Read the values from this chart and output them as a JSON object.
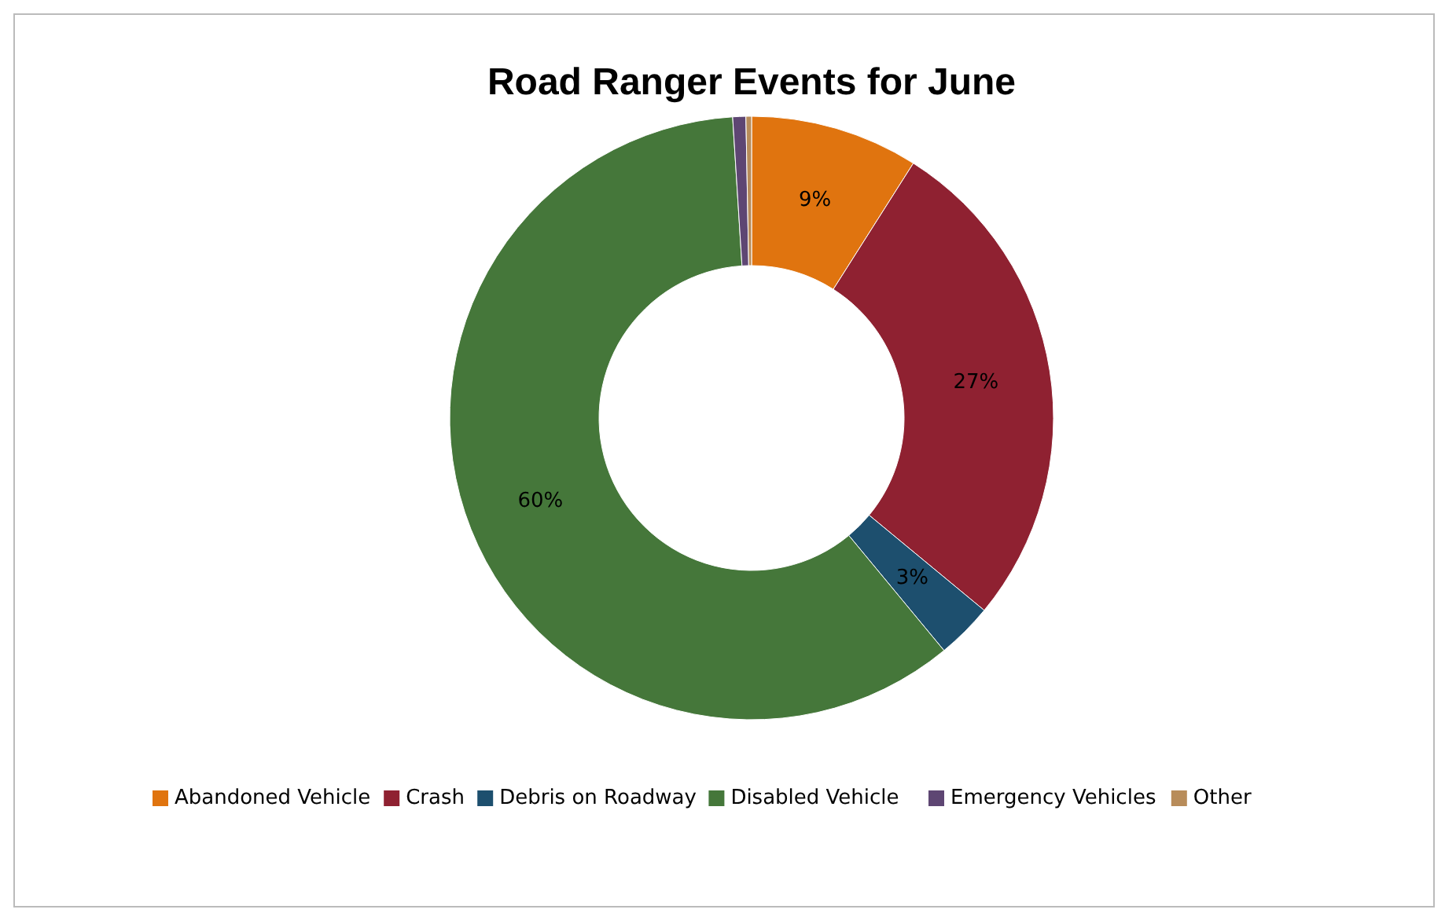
{
  "chart_data": {
    "type": "donut",
    "title": "Road Ranger Events for June",
    "categories": [
      "Abandoned Vehicle",
      "Crash",
      "Debris on Roadway",
      "Disabled Vehicle",
      "Emergency Vehicles",
      "Other"
    ],
    "values": [
      9,
      27,
      3,
      60,
      0.7,
      0.3
    ],
    "colors": [
      "#e0740f",
      "#8f2131",
      "#1d4f6e",
      "#45773a",
      "#5e4673",
      "#b88c5a"
    ],
    "value_labels": [
      "9%",
      "27%",
      "3%",
      "60%",
      null,
      null
    ],
    "legend": "bottom"
  }
}
